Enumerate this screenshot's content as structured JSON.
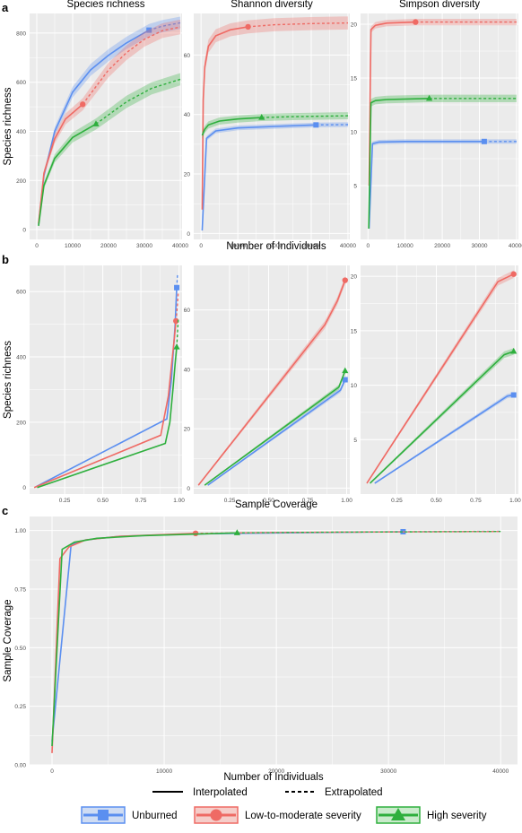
{
  "panel_letters": {
    "a": "a",
    "b": "b",
    "c": "c"
  },
  "legend": {
    "line_types": {
      "interpolated": "Interpolated",
      "extrapolated": "Extrapolated"
    },
    "groups": [
      {
        "name": "Unburned",
        "color": "#5b8ff0",
        "shape": "square"
      },
      {
        "name": "Low-to-moderate severity",
        "color": "#ef6a64",
        "shape": "circle"
      },
      {
        "name": "High severity",
        "color": "#2eaf3d",
        "shape": "triangle"
      }
    ]
  },
  "chart_data": [
    {
      "id": "a1",
      "type": "line",
      "panel": "a",
      "title": "Species richness",
      "ylabel": "Species richness",
      "xlabel": "",
      "xlim": [
        -2000,
        40500
      ],
      "ylim": [
        -40,
        880
      ],
      "xticks": [
        0,
        10000,
        20000,
        30000,
        40000
      ],
      "yticks": [
        0,
        200,
        400,
        600,
        800
      ],
      "series": [
        {
          "name": "Unburned",
          "ribbon": 25,
          "interp": [
            [
              500,
              20
            ],
            [
              2000,
              220
            ],
            [
              5000,
              400
            ],
            [
              10000,
              560
            ],
            [
              15000,
              650
            ],
            [
              20000,
              710
            ],
            [
              25000,
              760
            ],
            [
              31300,
              812
            ]
          ],
          "extrap": [
            [
              31300,
              812
            ],
            [
              35000,
              828
            ],
            [
              40000,
              842
            ]
          ],
          "obs": [
            31300,
            812
          ]
        },
        {
          "name": "Low-to-moderate severity",
          "ribbon": 30,
          "interp": [
            [
              500,
              25
            ],
            [
              2000,
              230
            ],
            [
              5000,
              370
            ],
            [
              8000,
              450
            ],
            [
              12800,
              510
            ]
          ],
          "extrap": [
            [
              12800,
              510
            ],
            [
              20000,
              650
            ],
            [
              25000,
              720
            ],
            [
              30000,
              775
            ],
            [
              35000,
              810
            ],
            [
              40000,
              825
            ]
          ],
          "obs": [
            12800,
            510
          ]
        },
        {
          "name": "High severity",
          "ribbon": 25,
          "interp": [
            [
              500,
              15
            ],
            [
              2000,
              180
            ],
            [
              5000,
              290
            ],
            [
              10000,
              375
            ],
            [
              16500,
              430
            ]
          ],
          "extrap": [
            [
              16500,
              430
            ],
            [
              25000,
              520
            ],
            [
              32000,
              575
            ],
            [
              40000,
              612
            ]
          ],
          "obs": [
            16500,
            430
          ]
        }
      ]
    },
    {
      "id": "a2",
      "type": "line",
      "panel": "a",
      "title": "Shannon diversity",
      "ylabel": "",
      "xlabel": "",
      "xlim": [
        -2000,
        40500
      ],
      "ylim": [
        -2,
        74
      ],
      "xticks": [
        0,
        10000,
        20000,
        30000,
        40000
      ],
      "yticks": [
        0,
        20,
        40,
        60
      ],
      "series": [
        {
          "name": "Unburned",
          "ribbon": 0.8,
          "interp": [
            [
              300,
              1
            ],
            [
              1500,
              32
            ],
            [
              4000,
              34.5
            ],
            [
              10000,
              35.5
            ],
            [
              20000,
              36
            ],
            [
              31300,
              36.5
            ]
          ],
          "extrap": [
            [
              31300,
              36.5
            ],
            [
              40000,
              36.6
            ]
          ],
          "obs": [
            31300,
            36.5
          ]
        },
        {
          "name": "Low-to-moderate severity",
          "ribbon": 2.2,
          "interp": [
            [
              300,
              8
            ],
            [
              600,
              45
            ],
            [
              1000,
              56
            ],
            [
              2000,
              63
            ],
            [
              4000,
              66.5
            ],
            [
              8000,
              68.5
            ],
            [
              12800,
              69.5
            ]
          ],
          "extrap": [
            [
              12800,
              69.5
            ],
            [
              20000,
              70.2
            ],
            [
              30000,
              70.6
            ],
            [
              40000,
              70.8
            ]
          ],
          "obs": [
            12800,
            69.5
          ]
        },
        {
          "name": "High severity",
          "ribbon": 1.2,
          "interp": [
            [
              300,
              33
            ],
            [
              1000,
              35
            ],
            [
              2000,
              36.5
            ],
            [
              5000,
              37.8
            ],
            [
              10000,
              38.5
            ],
            [
              16500,
              39
            ]
          ],
          "extrap": [
            [
              16500,
              39
            ],
            [
              25000,
              39.3
            ],
            [
              40000,
              39.6
            ]
          ],
          "obs": [
            16500,
            39
          ]
        }
      ]
    },
    {
      "id": "a3",
      "type": "line",
      "panel": "a",
      "title": "Simpson diversity",
      "ylabel": "",
      "xlabel": "",
      "xlim": [
        -2000,
        40500
      ],
      "ylim": [
        0,
        21
      ],
      "xticks": [
        0,
        10000,
        20000,
        30000,
        40000
      ],
      "yticks": [
        5,
        10,
        15,
        20
      ],
      "series": [
        {
          "name": "Unburned",
          "ribbon": 0.2,
          "interp": [
            [
              300,
              1
            ],
            [
              1200,
              8.9
            ],
            [
              3000,
              9.05
            ],
            [
              10000,
              9.1
            ],
            [
              31300,
              9.1
            ]
          ],
          "extrap": [
            [
              31300,
              9.1
            ],
            [
              40000,
              9.1
            ]
          ],
          "obs": [
            31300,
            9.1
          ]
        },
        {
          "name": "Low-to-moderate severity",
          "ribbon": 0.3,
          "interp": [
            [
              300,
              5
            ],
            [
              800,
              19.5
            ],
            [
              2000,
              19.9
            ],
            [
              5000,
              20.1
            ],
            [
              12800,
              20.2
            ]
          ],
          "extrap": [
            [
              12800,
              20.2
            ],
            [
              40000,
              20.2
            ]
          ],
          "obs": [
            12800,
            20.2
          ]
        },
        {
          "name": "High severity",
          "ribbon": 0.35,
          "interp": [
            [
              200,
              1
            ],
            [
              800,
              12.7
            ],
            [
              2000,
              12.9
            ],
            [
              5000,
              13
            ],
            [
              16500,
              13.1
            ]
          ],
          "extrap": [
            [
              16500,
              13.1
            ],
            [
              40000,
              13.1
            ]
          ],
          "obs": [
            16500,
            13.1
          ]
        }
      ]
    },
    {
      "id": "b1",
      "type": "line",
      "panel": "b",
      "title": "",
      "ylabel": "Species richness",
      "xlabel": "",
      "xlim": [
        0.02,
        1.02
      ],
      "ylim": [
        -20,
        680
      ],
      "xticks": [
        0.25,
        0.5,
        0.75,
        1.0
      ],
      "xticklabels": [
        "0.25",
        "0.50",
        "0.75",
        "1.00"
      ],
      "yticks": [
        0,
        200,
        400,
        600
      ],
      "series": [
        {
          "name": "Unburned",
          "ribbon": 0,
          "interp": [
            [
              0.06,
              2
            ],
            [
              0.92,
              210
            ],
            [
              0.95,
              330
            ],
            [
              0.975,
              500
            ],
            [
              0.985,
              612
            ]
          ],
          "extrap": [
            [
              0.985,
              612
            ],
            [
              0.99,
              650
            ]
          ],
          "obs": [
            0.985,
            612
          ]
        },
        {
          "name": "Low-to-moderate severity",
          "ribbon": 0,
          "interp": [
            [
              0.05,
              0
            ],
            [
              0.88,
              160
            ],
            [
              0.93,
              280
            ],
            [
              0.97,
              460
            ],
            [
              0.98,
              510
            ]
          ],
          "extrap": [
            [
              0.98,
              510
            ],
            [
              0.99,
              560
            ],
            [
              0.995,
              600
            ]
          ],
          "obs": [
            0.98,
            510
          ]
        },
        {
          "name": "High severity",
          "ribbon": 0,
          "interp": [
            [
              0.07,
              0
            ],
            [
              0.91,
              135
            ],
            [
              0.94,
              200
            ],
            [
              0.96,
              300
            ],
            [
              0.975,
              380
            ],
            [
              0.985,
              430
            ]
          ],
          "extrap": [
            [
              0.985,
              430
            ],
            [
              0.99,
              470
            ],
            [
              0.995,
              520
            ]
          ],
          "obs": [
            0.985,
            430
          ]
        }
      ]
    },
    {
      "id": "b2",
      "type": "line",
      "panel": "b",
      "title": "",
      "ylabel": "",
      "xlabel": "",
      "xlim": [
        0.02,
        1.02
      ],
      "ylim": [
        -2,
        75
      ],
      "xticks": [
        0.25,
        0.5,
        0.75,
        1.0
      ],
      "xticklabels": [
        "0.25",
        "0.50",
        "0.75",
        "1.00"
      ],
      "yticks": [
        0,
        20,
        40,
        60
      ],
      "series": [
        {
          "name": "Unburned",
          "ribbon": 0.8,
          "interp": [
            [
              0.11,
              1
            ],
            [
              0.96,
              33
            ],
            [
              0.99,
              36.5
            ]
          ],
          "extrap": [],
          "obs": [
            0.99,
            36.5
          ]
        },
        {
          "name": "Low-to-moderate severity",
          "ribbon": 1.3,
          "interp": [
            [
              0.05,
              1
            ],
            [
              0.86,
              55
            ],
            [
              0.94,
              63
            ],
            [
              0.99,
              70
            ]
          ],
          "extrap": [],
          "obs": [
            0.99,
            70
          ]
        },
        {
          "name": "High severity",
          "ribbon": 0.8,
          "interp": [
            [
              0.09,
              1
            ],
            [
              0.95,
              34
            ],
            [
              0.99,
              39.5
            ]
          ],
          "extrap": [],
          "obs": [
            0.99,
            39.5
          ]
        }
      ]
    },
    {
      "id": "b3",
      "type": "line",
      "panel": "b",
      "title": "",
      "ylabel": "",
      "xlabel": "",
      "xlim": [
        0.02,
        1.02
      ],
      "ylim": [
        0,
        21
      ],
      "xticks": [
        0.25,
        0.5,
        0.75,
        1.0
      ],
      "xticklabels": [
        "0.25",
        "0.50",
        "0.75",
        "1.00"
      ],
      "yticks": [
        5,
        10,
        15,
        20
      ],
      "series": [
        {
          "name": "Unburned",
          "ribbon": 0.2,
          "interp": [
            [
              0.11,
              1
            ],
            [
              0.95,
              9
            ],
            [
              0.99,
              9.1
            ]
          ],
          "extrap": [],
          "obs": [
            0.99,
            9.1
          ]
        },
        {
          "name": "Low-to-moderate severity",
          "ribbon": 0.35,
          "interp": [
            [
              0.06,
              1
            ],
            [
              0.89,
              19.5
            ],
            [
              0.99,
              20.2
            ]
          ],
          "extrap": [],
          "obs": [
            0.99,
            20.2
          ]
        },
        {
          "name": "High severity",
          "ribbon": 0.3,
          "interp": [
            [
              0.08,
              1
            ],
            [
              0.93,
              12.8
            ],
            [
              0.99,
              13.1
            ]
          ],
          "extrap": [],
          "obs": [
            0.99,
            13.1
          ]
        }
      ]
    },
    {
      "id": "c1",
      "type": "line",
      "panel": "c",
      "title": "",
      "ylabel": "Sample Coverage",
      "xlabel": "Number of Individuals",
      "xlim": [
        -2000,
        41500
      ],
      "ylim": [
        0,
        1.06
      ],
      "xticks": [
        0,
        10000,
        20000,
        30000,
        40000
      ],
      "yticks": [
        0,
        0.25,
        0.5,
        0.75,
        1.0
      ],
      "yticklabels": [
        "0.00",
        "0.25",
        "0.50",
        "0.75",
        "1.00"
      ],
      "series": [
        {
          "name": "Unburned",
          "ribbon": 0,
          "interp": [
            [
              0,
              0.1
            ],
            [
              1700,
              0.94
            ],
            [
              3000,
              0.96
            ],
            [
              6000,
              0.975
            ],
            [
              12000,
              0.985
            ],
            [
              20000,
              0.99
            ],
            [
              31300,
              0.995
            ]
          ],
          "extrap": [
            [
              31300,
              0.995
            ],
            [
              40000,
              0.997
            ]
          ],
          "obs": [
            31300,
            0.995
          ]
        },
        {
          "name": "Low-to-moderate severity",
          "ribbon": 0,
          "interp": [
            [
              0,
              0.05
            ],
            [
              700,
              0.88
            ],
            [
              1500,
              0.93
            ],
            [
              3000,
              0.96
            ],
            [
              6000,
              0.975
            ],
            [
              12800,
              0.988
            ]
          ],
          "extrap": [
            [
              12800,
              0.988
            ],
            [
              20000,
              0.992
            ],
            [
              40000,
              0.996
            ]
          ],
          "obs": [
            12800,
            0.988
          ]
        },
        {
          "name": "High severity",
          "ribbon": 0,
          "interp": [
            [
              0,
              0.08
            ],
            [
              900,
              0.92
            ],
            [
              2000,
              0.95
            ],
            [
              4000,
              0.967
            ],
            [
              8000,
              0.978
            ],
            [
              16500,
              0.99
            ]
          ],
          "extrap": [
            [
              16500,
              0.99
            ],
            [
              25000,
              0.993
            ],
            [
              40000,
              0.996
            ]
          ],
          "obs": [
            16500,
            0.99
          ]
        }
      ]
    }
  ],
  "axis_titles": {
    "a_x": "Number of Individuals",
    "b_x": "Sample Coverage"
  }
}
